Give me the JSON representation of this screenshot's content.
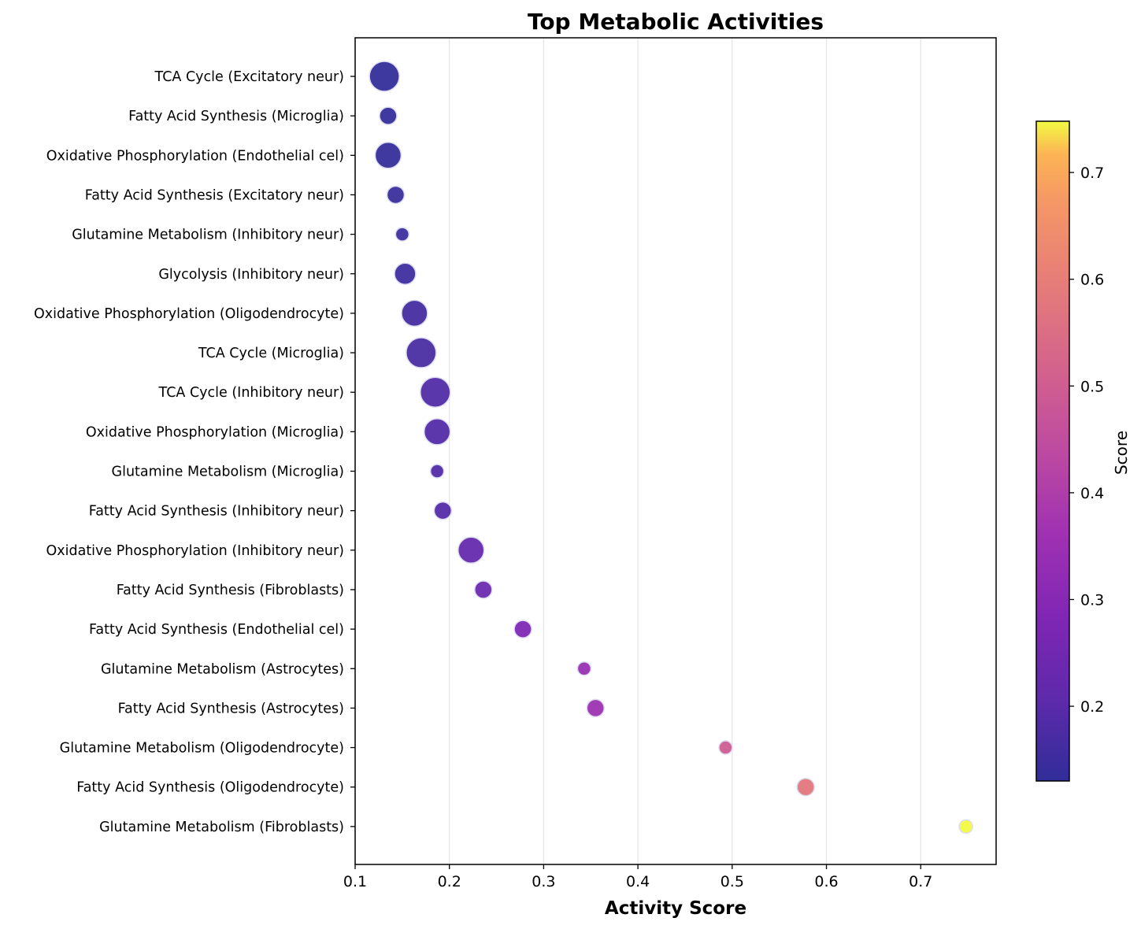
{
  "chart_data": {
    "type": "scatter",
    "title": "Top Metabolic Activities",
    "xlabel": "Activity Score",
    "ylabel": "",
    "xlim": [
      0.1,
      0.78
    ],
    "x_ticks": [
      "0.1",
      "0.2",
      "0.3",
      "0.4",
      "0.5",
      "0.6",
      "0.7"
    ],
    "x_tick_values": [
      0.1,
      0.2,
      0.3,
      0.4,
      0.5,
      0.6,
      0.7
    ],
    "grid": "vertical",
    "colormap": "plasma",
    "colorbar": {
      "label": "Score",
      "range": [
        0.13,
        0.748
      ],
      "ticks": [
        "0.2",
        "0.3",
        "0.4",
        "0.5",
        "0.6",
        "0.7"
      ],
      "tick_values": [
        0.2,
        0.3,
        0.4,
        0.5,
        0.6,
        0.7
      ]
    },
    "points": [
      {
        "label": "TCA Cycle (Excitatory neur)",
        "x": 0.131,
        "size": 5
      },
      {
        "label": "Fatty Acid Synthesis (Microglia)",
        "x": 0.135,
        "size": 2
      },
      {
        "label": "Oxidative Phosphorylation (Endothelial cel)",
        "x": 0.135,
        "size": 4
      },
      {
        "label": "Fatty Acid Synthesis (Excitatory neur)",
        "x": 0.143,
        "size": 2
      },
      {
        "label": "Glutamine Metabolism (Inhibitory neur)",
        "x": 0.15,
        "size": 1
      },
      {
        "label": "Glycolysis (Inhibitory neur)",
        "x": 0.153,
        "size": 3
      },
      {
        "label": "Oxidative Phosphorylation (Oligodendrocyte)",
        "x": 0.163,
        "size": 4
      },
      {
        "label": "TCA Cycle (Microglia)",
        "x": 0.17,
        "size": 5
      },
      {
        "label": "TCA Cycle (Inhibitory neur)",
        "x": 0.185,
        "size": 5
      },
      {
        "label": "Oxidative Phosphorylation (Microglia)",
        "x": 0.187,
        "size": 4
      },
      {
        "label": "Glutamine Metabolism (Microglia)",
        "x": 0.187,
        "size": 1
      },
      {
        "label": "Fatty Acid Synthesis (Inhibitory neur)",
        "x": 0.193,
        "size": 2
      },
      {
        "label": "Oxidative Phosphorylation (Inhibitory neur)",
        "x": 0.223,
        "size": 4
      },
      {
        "label": "Fatty Acid Synthesis (Fibroblasts)",
        "x": 0.236,
        "size": 2
      },
      {
        "label": "Fatty Acid Synthesis (Endothelial cel)",
        "x": 0.278,
        "size": 2
      },
      {
        "label": "Glutamine Metabolism (Astrocytes)",
        "x": 0.343,
        "size": 1
      },
      {
        "label": "Fatty Acid Synthesis (Astrocytes)",
        "x": 0.355,
        "size": 2
      },
      {
        "label": "Glutamine Metabolism (Oligodendrocyte)",
        "x": 0.493,
        "size": 1
      },
      {
        "label": "Fatty Acid Synthesis (Oligodendrocyte)",
        "x": 0.578,
        "size": 2
      },
      {
        "label": "Glutamine Metabolism (Fibroblasts)",
        "x": 0.748,
        "size": 1
      }
    ]
  }
}
